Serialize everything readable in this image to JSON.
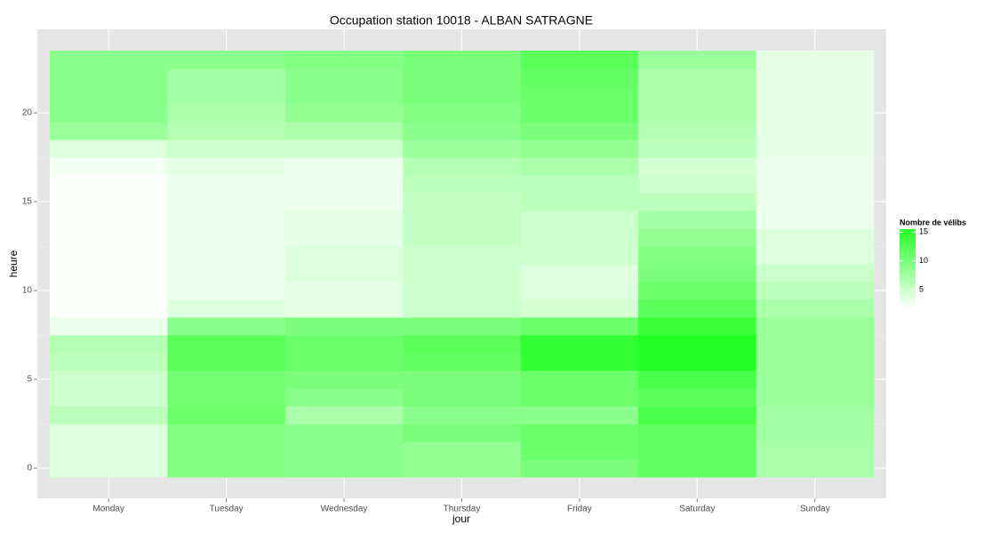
{
  "chart_data": {
    "type": "heatmap",
    "title": "Occupation station 10018 - ALBAN SATRAGNE",
    "xlabel": "jour",
    "ylabel": "heure",
    "categories": [
      "Monday",
      "Tuesday",
      "Wednesday",
      "Thursday",
      "Friday",
      "Saturday",
      "Sunday"
    ],
    "y": [
      0,
      1,
      2,
      3,
      4,
      5,
      6,
      7,
      8,
      9,
      10,
      11,
      12,
      13,
      14,
      15,
      16,
      17,
      18,
      19,
      20,
      21,
      22,
      23
    ],
    "values": [
      [
        4,
        4,
        4,
        6,
        5,
        5,
        6,
        6.5,
        3,
        2,
        2,
        2,
        2,
        2,
        2,
        2,
        2,
        2.5,
        4,
        8,
        9,
        9,
        9,
        9
      ],
      [
        9.5,
        9.5,
        9.5,
        11,
        10.5,
        10.5,
        12,
        12,
        9,
        4,
        3,
        3,
        3,
        3,
        3,
        3,
        3,
        3.5,
        5,
        6.5,
        7,
        7.5,
        7.5,
        9
      ],
      [
        9,
        9,
        9,
        7,
        9,
        10,
        11,
        11,
        10,
        3.5,
        3.5,
        4,
        4,
        3.5,
        3.5,
        3,
        3,
        3,
        5,
        7,
        8.5,
        9,
        9,
        9.5
      ],
      [
        8.5,
        8.5,
        10,
        9,
        10,
        10,
        11.5,
        12,
        10,
        5,
        5,
        5,
        5,
        5.5,
        5.5,
        5.5,
        6,
        6.5,
        8,
        9,
        9.5,
        10,
        10,
        10
      ],
      [
        10,
        11,
        11,
        9,
        11,
        11,
        14.5,
        14.5,
        11,
        4.5,
        4,
        4,
        5,
        5,
        5,
        6,
        6,
        7,
        8.5,
        10,
        11,
        11,
        11.5,
        12
      ],
      [
        11.5,
        11.5,
        11.5,
        13,
        12,
        13,
        15.5,
        15.5,
        14,
        12,
        11,
        10,
        9.5,
        8.5,
        7.5,
        6,
        5,
        4.5,
        6,
        6.5,
        7,
        7,
        7,
        8
      ],
      [
        7,
        7,
        7.5,
        7.5,
        8,
        8,
        8,
        8,
        8,
        7,
        6,
        5,
        4,
        4,
        3,
        3,
        3,
        3,
        3.5,
        3.5,
        3.5,
        3.5,
        3.5,
        3.5
      ]
    ],
    "ylim": [
      -1.7,
      24.7
    ],
    "yticks": [
      0,
      5,
      10,
      15,
      20
    ],
    "legend_title": "Nombre de vélibs",
    "clim": [
      1.8,
      15.5
    ],
    "cticks": [
      5,
      10,
      15
    ],
    "low_color": "#ffffff",
    "high_color": "#22ff22",
    "grid": true
  }
}
